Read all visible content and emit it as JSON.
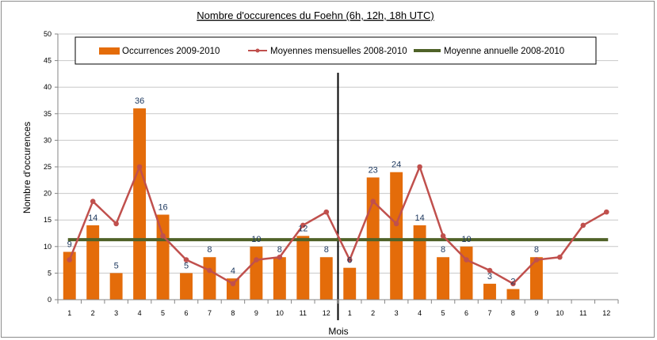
{
  "chart_data": {
    "type": "bar",
    "title": "Nombre d'occurences du Foehn (6h, 12h, 18h UTC)",
    "xlabel": "Mois",
    "ylabel": "Nombre d'occurences",
    "ylim": [
      0,
      50
    ],
    "yticks": [
      0,
      5,
      10,
      15,
      20,
      25,
      30,
      35,
      40,
      45,
      50
    ],
    "categories": [
      "1",
      "2",
      "3",
      "4",
      "5",
      "6",
      "7",
      "8",
      "9",
      "10",
      "11",
      "12",
      "1",
      "2",
      "3",
      "4",
      "5",
      "6",
      "7",
      "8",
      "9",
      "10",
      "11",
      "12"
    ],
    "series": [
      {
        "name": "Occurrences 2009-2010",
        "kind": "bar",
        "color": "#e46c0a",
        "values": [
          9,
          14,
          5,
          36,
          16,
          5,
          8,
          4,
          10,
          8,
          12,
          8,
          6,
          23,
          24,
          14,
          8,
          10,
          3,
          2,
          8,
          null,
          null,
          null
        ],
        "labels": [
          "9",
          "14",
          "5",
          "36",
          "16",
          "5",
          "8",
          "4",
          "10",
          "8",
          "12",
          "8",
          "6",
          "23",
          "24",
          "14",
          "8",
          "10",
          "3",
          "2",
          "8",
          "",
          "",
          ""
        ]
      },
      {
        "name": "Moyennes mensuelles 2008-2010",
        "kind": "line",
        "color": "#c0504d",
        "values": [
          7.5,
          18.5,
          14.3,
          25,
          12,
          7.5,
          5.5,
          3,
          7.5,
          8,
          14,
          16.5,
          7.5,
          18.5,
          14.3,
          25,
          12,
          7.5,
          5.5,
          3,
          7.5,
          8,
          14,
          16.5
        ]
      },
      {
        "name": "Moyenne annuelle 2008-2010",
        "kind": "hline",
        "color": "#4f6228",
        "value": 11.3
      }
    ],
    "legend_position": "top",
    "grid": true,
    "year_separator_after_category": 12
  }
}
